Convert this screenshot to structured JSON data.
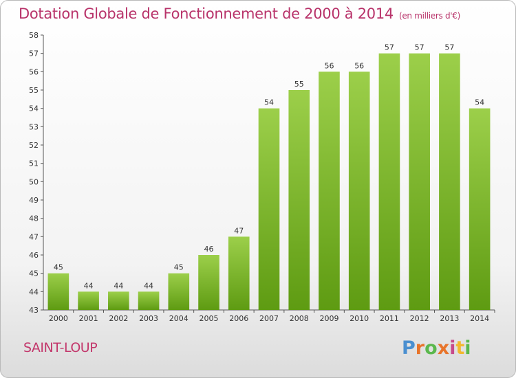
{
  "chart_data": {
    "type": "bar",
    "title": "Dotation Globale de Fonctionnement de 2000 à 2014",
    "subtitle": "(en milliers d'€)",
    "categories": [
      "2000",
      "2001",
      "2002",
      "2003",
      "2004",
      "2005",
      "2006",
      "2007",
      "2008",
      "2009",
      "2010",
      "2011",
      "2012",
      "2013",
      "2014"
    ],
    "values": [
      45,
      44,
      44,
      44,
      45,
      46,
      47,
      54,
      55,
      56,
      56,
      57,
      57,
      57,
      54
    ],
    "ylim": [
      43,
      58
    ],
    "yticks": [
      43,
      44,
      45,
      46,
      47,
      48,
      49,
      50,
      51,
      52,
      53,
      54,
      55,
      56,
      57,
      58
    ],
    "xlabel": "",
    "ylabel": "",
    "grid": false,
    "bar_color": "#7cc02a"
  },
  "footer": {
    "commune": "SAINT-LOUP",
    "logo_letters": [
      "P",
      "r",
      "o",
      "x",
      "i",
      "t",
      "i"
    ]
  }
}
